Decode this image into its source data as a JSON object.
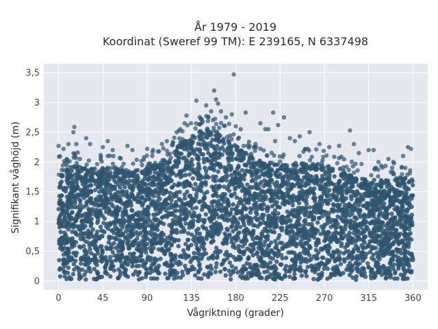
{
  "chart_data": {
    "type": "scatter",
    "title_line1": "År 1979 - 2019",
    "title_line2": "Koordinat (Sweref 99 TM): E 239165, N 6337498",
    "xlabel": "Vågriktning (grader)",
    "ylabel": "Signifikant våghöjd (m)",
    "xlim": [
      -15,
      375
    ],
    "ylim": [
      -0.15,
      3.65
    ],
    "x_ticks": [
      0,
      45,
      90,
      135,
      180,
      225,
      270,
      315,
      360
    ],
    "x_tick_labels": [
      "0",
      "45",
      "90",
      "135",
      "180",
      "225",
      "270",
      "315",
      "360"
    ],
    "y_ticks": [
      0,
      0.5,
      1,
      1.5,
      2,
      2.5,
      3,
      3.5
    ],
    "y_tick_labels": [
      "0",
      "0,5",
      "1",
      "1,5",
      "2",
      "2,5",
      "3",
      "3,5"
    ],
    "grid": true,
    "legend": "none",
    "marker_color": "#2f5570",
    "plot_background": "#e5e8ef",
    "envelope_upper": [
      [
        0,
        1.85
      ],
      [
        20,
        1.95
      ],
      [
        45,
        1.9
      ],
      [
        70,
        1.85
      ],
      [
        90,
        1.9
      ],
      [
        110,
        2.05
      ],
      [
        125,
        2.35
      ],
      [
        140,
        2.5
      ],
      [
        155,
        2.55
      ],
      [
        170,
        2.45
      ],
      [
        185,
        2.2
      ],
      [
        200,
        2.05
      ],
      [
        225,
        1.95
      ],
      [
        250,
        2.0
      ],
      [
        270,
        1.95
      ],
      [
        285,
        1.9
      ],
      [
        300,
        1.75
      ],
      [
        315,
        1.7
      ],
      [
        330,
        1.7
      ],
      [
        345,
        1.75
      ],
      [
        360,
        1.7
      ]
    ],
    "outliers": [
      [
        0,
        2.27
      ],
      [
        5,
        2.22
      ],
      [
        10,
        2.3
      ],
      [
        15,
        2.5
      ],
      [
        16,
        2.59
      ],
      [
        18,
        2.3
      ],
      [
        28,
        2.4
      ],
      [
        32,
        2.3
      ],
      [
        45,
        2.25
      ],
      [
        50,
        2.35
      ],
      [
        55,
        2.2
      ],
      [
        70,
        2.27
      ],
      [
        75,
        2.2
      ],
      [
        90,
        2.22
      ],
      [
        96,
        2.2
      ],
      [
        105,
        2.3
      ],
      [
        110,
        2.35
      ],
      [
        120,
        2.5
      ],
      [
        128,
        2.65
      ],
      [
        130,
        2.78
      ],
      [
        140,
        3.03
      ],
      [
        145,
        2.65
      ],
      [
        150,
        2.95
      ],
      [
        155,
        2.85
      ],
      [
        158,
        3.2
      ],
      [
        160,
        3.05
      ],
      [
        162,
        2.98
      ],
      [
        165,
        2.85
      ],
      [
        170,
        2.75
      ],
      [
        176,
        2.8
      ],
      [
        178,
        3.47
      ],
      [
        180,
        2.6
      ],
      [
        185,
        2.55
      ],
      [
        190,
        2.83
      ],
      [
        200,
        2.3
      ],
      [
        205,
        2.65
      ],
      [
        210,
        2.55
      ],
      [
        213,
        2.55
      ],
      [
        218,
        2.83
      ],
      [
        220,
        2.35
      ],
      [
        223,
        2.62
      ],
      [
        229,
        2.75
      ],
      [
        235,
        2.4
      ],
      [
        240,
        2.35
      ],
      [
        245,
        2.43
      ],
      [
        255,
        2.5
      ],
      [
        265,
        2.3
      ],
      [
        275,
        2.25
      ],
      [
        285,
        2.27
      ],
      [
        296,
        2.53
      ],
      [
        300,
        2.3
      ],
      [
        305,
        2.15
      ],
      [
        315,
        2.2
      ],
      [
        320,
        2.2
      ],
      [
        325,
        2.0
      ],
      [
        335,
        2.05
      ],
      [
        340,
        2.0
      ],
      [
        350,
        2.1
      ],
      [
        355,
        2.25
      ],
      [
        358,
        2.22
      ]
    ]
  }
}
